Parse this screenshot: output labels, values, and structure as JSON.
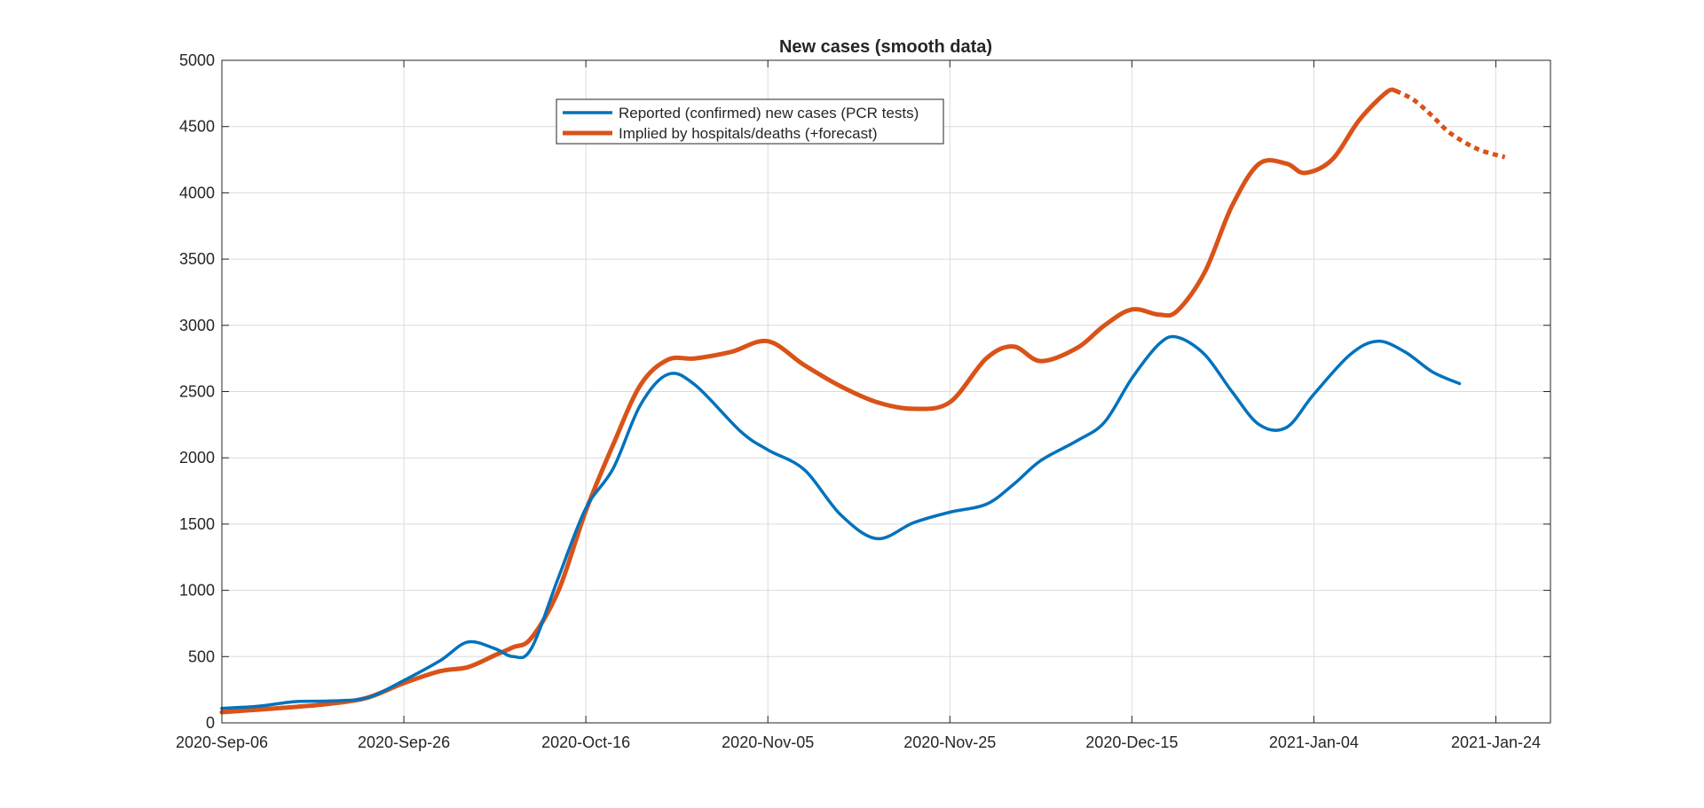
{
  "chart_data": {
    "type": "line",
    "title": "New cases (smooth data)",
    "xlabel": "",
    "ylabel": "",
    "x_axis": {
      "type": "date",
      "range": [
        "2020-09-06",
        "2021-01-30"
      ],
      "ticks": [
        "2020-09-06",
        "2020-09-26",
        "2020-10-16",
        "2020-11-05",
        "2020-11-25",
        "2020-12-15",
        "2021-01-04",
        "2021-01-24"
      ],
      "tick_labels": [
        "2020-Sep-06",
        "2020-Sep-26",
        "2020-Oct-16",
        "2020-Nov-05",
        "2020-Nov-25",
        "2020-Dec-15",
        "2021-Jan-04",
        "2021-Jan-24"
      ]
    },
    "ylim": [
      0,
      5000
    ],
    "yticks": [
      0,
      500,
      1000,
      1500,
      2000,
      2500,
      3000,
      3500,
      4000,
      4500,
      5000
    ],
    "grid": true,
    "legend_position": "top-center",
    "series": [
      {
        "name": "Reported (confirmed) new cases (PCR tests)",
        "color": "#0072BD",
        "style": "solid",
        "points": [
          [
            "2020-09-06",
            110
          ],
          [
            "2020-09-10",
            125
          ],
          [
            "2020-09-14",
            160
          ],
          [
            "2020-09-18",
            165
          ],
          [
            "2020-09-22",
            190
          ],
          [
            "2020-09-26",
            320
          ],
          [
            "2020-09-30",
            470
          ],
          [
            "2020-10-03",
            610
          ],
          [
            "2020-10-06",
            560
          ],
          [
            "2020-10-08",
            500
          ],
          [
            "2020-10-10",
            560
          ],
          [
            "2020-10-13",
            1100
          ],
          [
            "2020-10-16",
            1620
          ],
          [
            "2020-10-19",
            1920
          ],
          [
            "2020-10-22",
            2400
          ],
          [
            "2020-10-25",
            2630
          ],
          [
            "2020-10-28",
            2550
          ],
          [
            "2020-11-02",
            2200
          ],
          [
            "2020-11-05",
            2060
          ],
          [
            "2020-11-09",
            1910
          ],
          [
            "2020-11-13",
            1570
          ],
          [
            "2020-11-17",
            1390
          ],
          [
            "2020-11-21",
            1510
          ],
          [
            "2020-11-25",
            1590
          ],
          [
            "2020-11-29",
            1650
          ],
          [
            "2020-12-02",
            1800
          ],
          [
            "2020-12-05",
            1980
          ],
          [
            "2020-12-09",
            2130
          ],
          [
            "2020-12-12",
            2270
          ],
          [
            "2020-12-15",
            2600
          ],
          [
            "2020-12-18",
            2860
          ],
          [
            "2020-12-20",
            2910
          ],
          [
            "2020-12-23",
            2780
          ],
          [
            "2020-12-26",
            2500
          ],
          [
            "2020-12-29",
            2250
          ],
          [
            "2021-01-01",
            2230
          ],
          [
            "2021-01-04",
            2480
          ],
          [
            "2021-01-08",
            2780
          ],
          [
            "2021-01-11",
            2880
          ],
          [
            "2021-01-14",
            2800
          ],
          [
            "2021-01-17",
            2650
          ],
          [
            "2021-01-20",
            2560
          ]
        ]
      },
      {
        "name": "Implied by hospitals/deaths (+forecast)",
        "color": "#D95319",
        "style": "solid",
        "points": [
          [
            "2020-09-06",
            80
          ],
          [
            "2020-09-10",
            100
          ],
          [
            "2020-09-14",
            120
          ],
          [
            "2020-09-18",
            145
          ],
          [
            "2020-09-22",
            190
          ],
          [
            "2020-09-26",
            300
          ],
          [
            "2020-09-30",
            390
          ],
          [
            "2020-10-03",
            420
          ],
          [
            "2020-10-06",
            510
          ],
          [
            "2020-10-08",
            570
          ],
          [
            "2020-10-10",
            640
          ],
          [
            "2020-10-13",
            1000
          ],
          [
            "2020-10-16",
            1600
          ],
          [
            "2020-10-19",
            2100
          ],
          [
            "2020-10-22",
            2550
          ],
          [
            "2020-10-25",
            2740
          ],
          [
            "2020-10-28",
            2750
          ],
          [
            "2020-11-01",
            2800
          ],
          [
            "2020-11-05",
            2880
          ],
          [
            "2020-11-09",
            2700
          ],
          [
            "2020-11-13",
            2540
          ],
          [
            "2020-11-17",
            2420
          ],
          [
            "2020-11-21",
            2370
          ],
          [
            "2020-11-25",
            2420
          ],
          [
            "2020-11-29",
            2750
          ],
          [
            "2020-12-02",
            2840
          ],
          [
            "2020-12-05",
            2730
          ],
          [
            "2020-12-09",
            2830
          ],
          [
            "2020-12-12",
            3000
          ],
          [
            "2020-12-15",
            3120
          ],
          [
            "2020-12-18",
            3080
          ],
          [
            "2020-12-20",
            3110
          ],
          [
            "2020-12-23",
            3400
          ],
          [
            "2020-12-26",
            3900
          ],
          [
            "2020-12-29",
            4220
          ],
          [
            "2021-01-01",
            4220
          ],
          [
            "2021-01-03",
            4150
          ],
          [
            "2021-01-06",
            4250
          ],
          [
            "2021-01-09",
            4550
          ],
          [
            "2021-01-12",
            4760
          ],
          [
            "2021-01-13",
            4770
          ]
        ]
      },
      {
        "name": "",
        "color": "#D95319",
        "style": "dotted",
        "points": [
          [
            "2021-01-13",
            4770
          ],
          [
            "2021-01-15",
            4700
          ],
          [
            "2021-01-17",
            4580
          ],
          [
            "2021-01-19",
            4450
          ],
          [
            "2021-01-22",
            4330
          ],
          [
            "2021-01-25",
            4270
          ]
        ]
      }
    ]
  }
}
